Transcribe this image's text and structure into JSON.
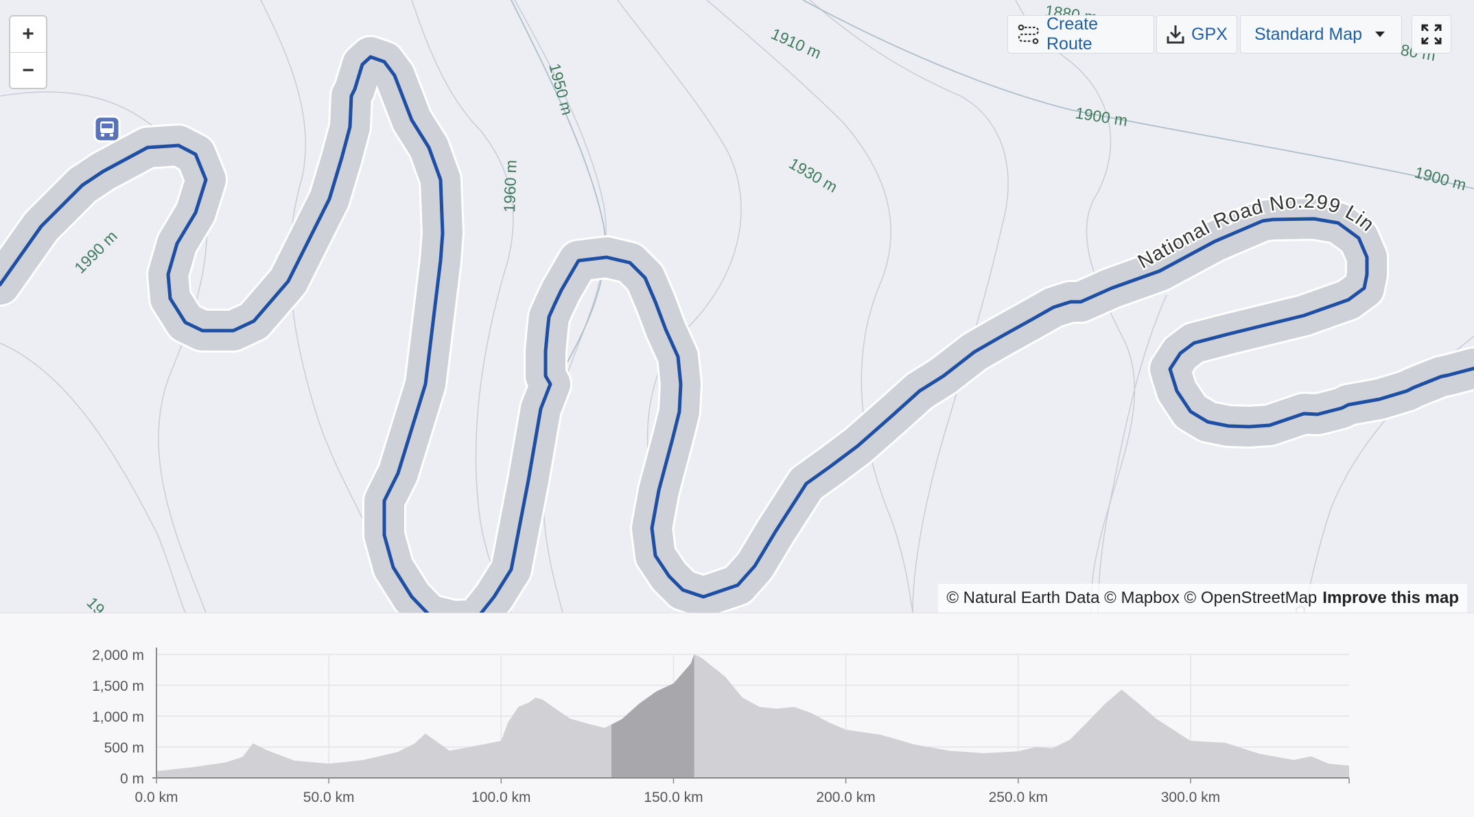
{
  "toolbar": {
    "create_route_label": "Create Route",
    "gpx_label": "GPX",
    "map_style_label": "Standard Map"
  },
  "zoom": {
    "in_label": "+",
    "out_label": "−"
  },
  "map": {
    "contour_labels": [
      "1880 m",
      "1910 m",
      "1950 m",
      "1900 m",
      "1930 m",
      "1900 m",
      "1960 m",
      "1990 m",
      "80 m",
      "19"
    ],
    "road_label": "National Road No.299 Line",
    "colors": {
      "route": "#1e4fa3",
      "road_casing": "#ced1d8",
      "road_edge": "#ffffff",
      "contour": "#c4c9d3",
      "contour_label": "#3f7a5a",
      "background": "#eceef4"
    }
  },
  "attribution": {
    "text": "© Natural Earth Data © Mapbox © OpenStreetMap",
    "improve_label": "Improve this map"
  },
  "chart_data": {
    "type": "area",
    "title": "",
    "xlabel": "",
    "ylabel": "",
    "x_ticks": [
      "0.0 km",
      "50.0 km",
      "100.0 km",
      "150.0 km",
      "200.0 km",
      "250.0 km",
      "300.0 km"
    ],
    "y_ticks": [
      "2,000 m",
      "1,500 m",
      "1,000 m",
      "500 m",
      "0 m"
    ],
    "xlim": [
      0,
      346
    ],
    "ylim": [
      0,
      2000
    ],
    "grid": true,
    "highlight_range_km": [
      132,
      156
    ],
    "series": [
      {
        "x": [
          0,
          10,
          20,
          25,
          28,
          32,
          40,
          50,
          60,
          70,
          75,
          78,
          82,
          85,
          90,
          100,
          102,
          105,
          108,
          110,
          112,
          115,
          120,
          125,
          130,
          135,
          140,
          145,
          150,
          155,
          156,
          158,
          165,
          170,
          175,
          180,
          185,
          190,
          195,
          200,
          210,
          220,
          230,
          240,
          250,
          255,
          260,
          265,
          270,
          275,
          280,
          285,
          290,
          295,
          300,
          310,
          320,
          330,
          335,
          340,
          346
        ],
        "y": [
          110,
          170,
          250,
          340,
          560,
          450,
          280,
          230,
          290,
          420,
          560,
          720,
          560,
          440,
          490,
          600,
          900,
          1150,
          1220,
          1300,
          1270,
          1150,
          960,
          880,
          810,
          950,
          1200,
          1400,
          1530,
          1850,
          2000,
          1950,
          1640,
          1300,
          1150,
          1120,
          1150,
          1050,
          900,
          780,
          700,
          540,
          440,
          400,
          430,
          500,
          480,
          620,
          900,
          1190,
          1430,
          1200,
          960,
          780,
          600,
          570,
          390,
          290,
          350,
          230,
          200
        ]
      }
    ]
  }
}
